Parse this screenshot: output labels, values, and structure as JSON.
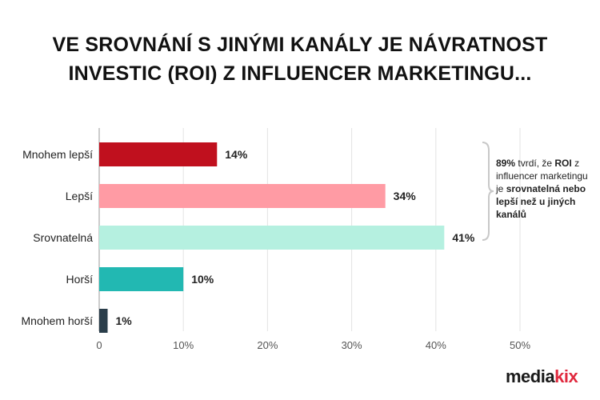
{
  "title_lines": [
    "VE SROVNÁNÍ S JINÝMI KANÁLY JE NÁVRATNOST",
    "INVESTIC (ROI) Z INFLUENCER MARKETINGU..."
  ],
  "chart_data": {
    "type": "bar",
    "orientation": "horizontal",
    "categories": [
      "Mnohem lepší",
      "Lepší",
      "Srovnatelná",
      "Horší",
      "Mnohem horší"
    ],
    "values": [
      14,
      34,
      41,
      10,
      1
    ],
    "value_labels": [
      "14%",
      "34%",
      "41%",
      "10%",
      "1%"
    ],
    "colors": [
      "#c0101e",
      "#ff9ba4",
      "#b5f0e0",
      "#22b8b2",
      "#2a3d4a"
    ],
    "xlim": [
      0,
      50
    ],
    "ticks": [
      0,
      10,
      20,
      30,
      40,
      50
    ],
    "tick_labels": [
      "0",
      "10%",
      "20%",
      "30%",
      "40%",
      "50%"
    ],
    "grid": true
  },
  "annotation": {
    "parts": [
      {
        "text": "89%",
        "bold": true
      },
      {
        "text": " tvrdí, že ",
        "bold": false
      },
      {
        "text": "ROI",
        "bold": true
      },
      {
        "text": " z influencer marketingu je ",
        "bold": false
      },
      {
        "text": "srovnatelná nebo lepší než u jiných kanálů",
        "bold": true
      }
    ]
  },
  "logo": {
    "part1": "media",
    "part2": "kix",
    "colors": [
      "#1a1a1a",
      "#e0293e"
    ]
  }
}
